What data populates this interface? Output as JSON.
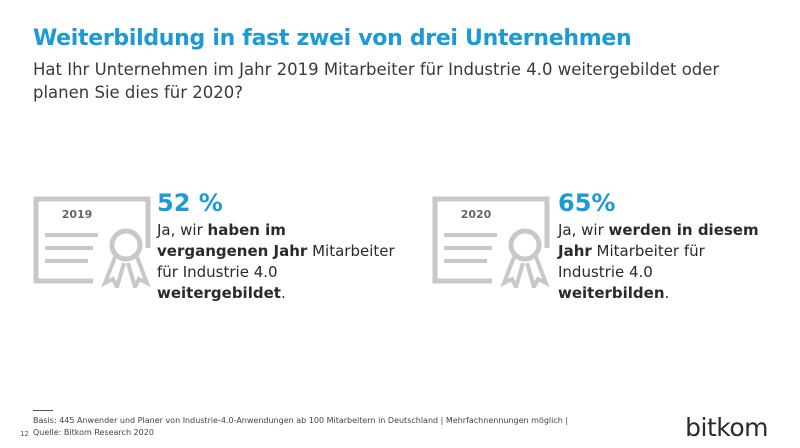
{
  "header": {
    "title": "Weiterbildung in fast zwei von drei Unternehmen",
    "subtitle": "Hat Ihr Unternehmen im Jahr 2019  Mitarbeiter für Industrie 4.0 weitergebildet oder planen Sie dies für 2020?"
  },
  "items": [
    {
      "year": "2019",
      "value": "52 %",
      "text": [
        {
          "text": "Ja, wir ",
          "bold": false
        },
        {
          "text": "haben im vergangenen Jahr",
          "bold": true
        },
        {
          "text": " Mitarbeiter für Industrie 4.0 ",
          "bold": false
        },
        {
          "text": "weitergebildet",
          "bold": true
        },
        {
          "text": ".",
          "bold": false
        }
      ]
    },
    {
      "year": "2020",
      "value": "65%",
      "text": [
        {
          "text": "Ja, wir ",
          "bold": false
        },
        {
          "text": "werden in diesem Jahr",
          "bold": true
        },
        {
          "text": " Mitarbeiter für Industrie 4.0 ",
          "bold": false
        },
        {
          "text": "weiterbilden",
          "bold": true
        },
        {
          "text": ".",
          "bold": false
        }
      ]
    }
  ],
  "footer": {
    "page": "12",
    "basis": "Basis: 445 Anwender und Planer von Industrie-4.0-Anwendungen ab 100 Mitarbeitern in Deutschland | Mehrfachnennungen möglich |",
    "source": "Quelle: Bitkom Research 2020",
    "logo": "bitkom"
  }
}
